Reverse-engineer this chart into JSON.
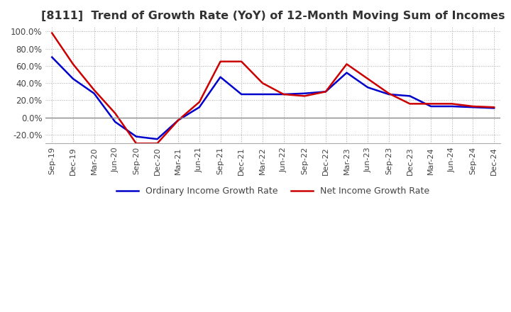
{
  "title": "[8111]  Trend of Growth Rate (YoY) of 12-Month Moving Sum of Incomes",
  "title_fontsize": 11.5,
  "ylim": [
    -30,
    105
  ],
  "yticks": [
    -20,
    0,
    20,
    40,
    60,
    80,
    100
  ],
  "background_color": "#ffffff",
  "grid_color": "#aaaaaa",
  "x_labels": [
    "Sep-19",
    "Dec-19",
    "Mar-20",
    "Jun-20",
    "Sep-20",
    "Dec-20",
    "Mar-21",
    "Jun-21",
    "Sep-21",
    "Dec-21",
    "Mar-22",
    "Jun-22",
    "Sep-22",
    "Dec-22",
    "Mar-23",
    "Jun-23",
    "Sep-23",
    "Dec-23",
    "Mar-24",
    "Jun-24",
    "Sep-24",
    "Dec-24"
  ],
  "ordinary_income": [
    70,
    45,
    28,
    -5,
    -22,
    -25,
    -3,
    12,
    47,
    27,
    27,
    27,
    28,
    30,
    52,
    35,
    27,
    25,
    13,
    13,
    12,
    11
  ],
  "net_income": [
    98,
    62,
    32,
    5,
    -30,
    -30,
    -3,
    18,
    65,
    65,
    40,
    27,
    25,
    30,
    62,
    45,
    28,
    16,
    16,
    16,
    13,
    12
  ],
  "ordinary_color": "#0000cc",
  "net_color": "#cc0000",
  "line_width": 1.8,
  "legend_ordinary": "Ordinary Income Growth Rate",
  "legend_net": "Net Income Growth Rate"
}
